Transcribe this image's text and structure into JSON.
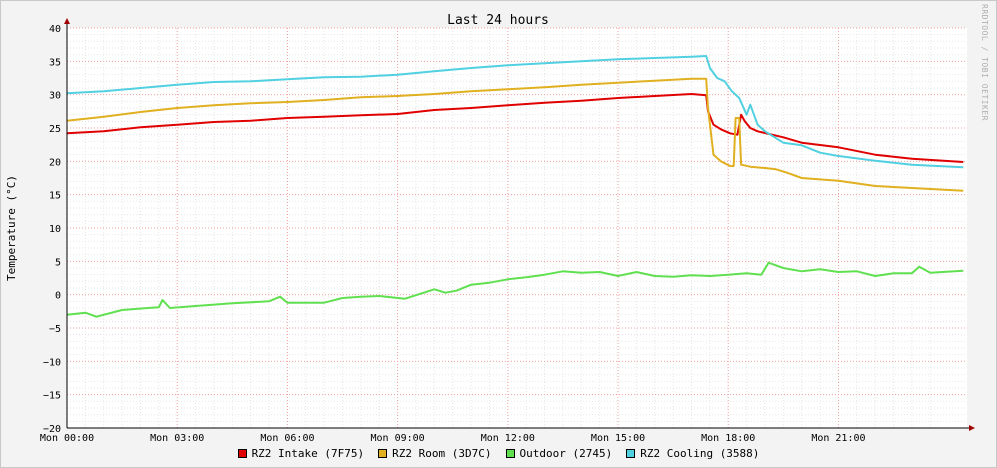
{
  "chart_data": {
    "type": "line",
    "title": "Last 24 hours",
    "xlabel": "",
    "ylabel": "Temperature (°C)",
    "ylim": [
      -20,
      40
    ],
    "yticks": [
      -20,
      -15,
      -10,
      -5,
      0,
      5,
      10,
      15,
      20,
      25,
      30,
      35,
      40
    ],
    "xlim_hours": [
      0,
      24.5
    ],
    "xticks": [
      {
        "hour": 0,
        "label": "Mon 00:00"
      },
      {
        "hour": 3,
        "label": "Mon 03:00"
      },
      {
        "hour": 6,
        "label": "Mon 06:00"
      },
      {
        "hour": 9,
        "label": "Mon 09:00"
      },
      {
        "hour": 12,
        "label": "Mon 12:00"
      },
      {
        "hour": 15,
        "label": "Mon 15:00"
      },
      {
        "hour": 18,
        "label": "Mon 18:00"
      },
      {
        "hour": 21,
        "label": "Mon 21:00"
      }
    ],
    "grid": true,
    "legend": "bottom",
    "series": [
      {
        "name": "RZ2 Intake (7F75)",
        "color": "#e00000",
        "points": [
          [
            0,
            24.2
          ],
          [
            1,
            24.5
          ],
          [
            2,
            25.1
          ],
          [
            3,
            25.5
          ],
          [
            4,
            25.9
          ],
          [
            5,
            26.1
          ],
          [
            6,
            26.5
          ],
          [
            7,
            26.7
          ],
          [
            8,
            26.9
          ],
          [
            9,
            27.1
          ],
          [
            10,
            27.7
          ],
          [
            11,
            28.0
          ],
          [
            12,
            28.4
          ],
          [
            13,
            28.8
          ],
          [
            14,
            29.1
          ],
          [
            15,
            29.5
          ],
          [
            16,
            29.8
          ],
          [
            17,
            30.1
          ],
          [
            17.4,
            29.9
          ],
          [
            17.45,
            27.5
          ],
          [
            17.6,
            25.5
          ],
          [
            17.8,
            24.8
          ],
          [
            18.05,
            24.2
          ],
          [
            18.25,
            24.0
          ],
          [
            18.35,
            27.0
          ],
          [
            18.45,
            26.0
          ],
          [
            18.6,
            25.0
          ],
          [
            18.8,
            24.5
          ],
          [
            19.5,
            23.6
          ],
          [
            20,
            22.8
          ],
          [
            21,
            22.1
          ],
          [
            22,
            21.0
          ],
          [
            23,
            20.4
          ],
          [
            24.4,
            19.9
          ]
        ]
      },
      {
        "name": "RZ2 Room (3D7C)",
        "color": "#e0b020",
        "points": [
          [
            0,
            26.1
          ],
          [
            1,
            26.7
          ],
          [
            2,
            27.4
          ],
          [
            3,
            28.0
          ],
          [
            4,
            28.4
          ],
          [
            5,
            28.7
          ],
          [
            6,
            28.9
          ],
          [
            7,
            29.2
          ],
          [
            8,
            29.6
          ],
          [
            9,
            29.8
          ],
          [
            10,
            30.1
          ],
          [
            11,
            30.5
          ],
          [
            12,
            30.8
          ],
          [
            13,
            31.1
          ],
          [
            14,
            31.5
          ],
          [
            15,
            31.8
          ],
          [
            16,
            32.1
          ],
          [
            17,
            32.4
          ],
          [
            17.4,
            32.4
          ],
          [
            17.45,
            28.0
          ],
          [
            17.6,
            21.0
          ],
          [
            17.8,
            20.0
          ],
          [
            18.05,
            19.3
          ],
          [
            18.15,
            19.3
          ],
          [
            18.2,
            26.5
          ],
          [
            18.3,
            26.5
          ],
          [
            18.35,
            19.5
          ],
          [
            18.6,
            19.2
          ],
          [
            19,
            19.0
          ],
          [
            19.3,
            18.8
          ],
          [
            19.6,
            18.3
          ],
          [
            20,
            17.5
          ],
          [
            21,
            17.1
          ],
          [
            22,
            16.3
          ],
          [
            23,
            16.0
          ],
          [
            24.4,
            15.6
          ]
        ]
      },
      {
        "name": "Outdoor (2745)",
        "color": "#60e050",
        "points": [
          [
            0,
            -3.0
          ],
          [
            0.5,
            -2.7
          ],
          [
            0.8,
            -3.3
          ],
          [
            1.5,
            -2.3
          ],
          [
            2.2,
            -2.0
          ],
          [
            2.5,
            -1.9
          ],
          [
            2.6,
            -0.8
          ],
          [
            2.8,
            -2.0
          ],
          [
            3.5,
            -1.7
          ],
          [
            4.5,
            -1.3
          ],
          [
            5.5,
            -1.0
          ],
          [
            5.8,
            -0.3
          ],
          [
            6,
            -1.2
          ],
          [
            7,
            -1.2
          ],
          [
            7.5,
            -0.5
          ],
          [
            8,
            -0.3
          ],
          [
            8.5,
            -0.2
          ],
          [
            9.2,
            -0.6
          ],
          [
            10,
            0.8
          ],
          [
            10.3,
            0.3
          ],
          [
            10.6,
            0.6
          ],
          [
            11,
            1.5
          ],
          [
            11.5,
            1.8
          ],
          [
            12,
            2.3
          ],
          [
            12.5,
            2.6
          ],
          [
            13,
            3.0
          ],
          [
            13.5,
            3.5
          ],
          [
            14,
            3.3
          ],
          [
            14.5,
            3.4
          ],
          [
            15,
            2.8
          ],
          [
            15.5,
            3.4
          ],
          [
            16,
            2.8
          ],
          [
            16.5,
            2.7
          ],
          [
            17,
            2.9
          ],
          [
            17.5,
            2.8
          ],
          [
            18,
            3.0
          ],
          [
            18.5,
            3.2
          ],
          [
            18.9,
            3.0
          ],
          [
            19.1,
            4.8
          ],
          [
            19.5,
            4.0
          ],
          [
            20,
            3.5
          ],
          [
            20.5,
            3.8
          ],
          [
            21,
            3.4
          ],
          [
            21.5,
            3.5
          ],
          [
            22,
            2.8
          ],
          [
            22.5,
            3.2
          ],
          [
            23,
            3.2
          ],
          [
            23.2,
            4.2
          ],
          [
            23.5,
            3.3
          ],
          [
            24.4,
            3.6
          ]
        ]
      },
      {
        "name": "RZ2 Cooling (3588)",
        "color": "#50d0e0",
        "points": [
          [
            0,
            30.2
          ],
          [
            1,
            30.5
          ],
          [
            2,
            31.0
          ],
          [
            3,
            31.5
          ],
          [
            4,
            31.9
          ],
          [
            5,
            32.0
          ],
          [
            6,
            32.3
          ],
          [
            7,
            32.6
          ],
          [
            8,
            32.7
          ],
          [
            9,
            33.0
          ],
          [
            10,
            33.5
          ],
          [
            11,
            34.0
          ],
          [
            12,
            34.4
          ],
          [
            13,
            34.7
          ],
          [
            14,
            35.0
          ],
          [
            15,
            35.3
          ],
          [
            16,
            35.5
          ],
          [
            17,
            35.7
          ],
          [
            17.4,
            35.8
          ],
          [
            17.5,
            34.0
          ],
          [
            17.7,
            32.5
          ],
          [
            17.9,
            32.0
          ],
          [
            18.1,
            30.5
          ],
          [
            18.3,
            29.5
          ],
          [
            18.5,
            27.0
          ],
          [
            18.6,
            28.5
          ],
          [
            18.8,
            25.5
          ],
          [
            19.0,
            24.5
          ],
          [
            19.5,
            22.8
          ],
          [
            20,
            22.4
          ],
          [
            20.5,
            21.3
          ],
          [
            21,
            20.8
          ],
          [
            22,
            20.1
          ],
          [
            23,
            19.5
          ],
          [
            24.4,
            19.1
          ]
        ]
      }
    ],
    "watermark": "RRDTOOL / TOBI OETIKER"
  }
}
